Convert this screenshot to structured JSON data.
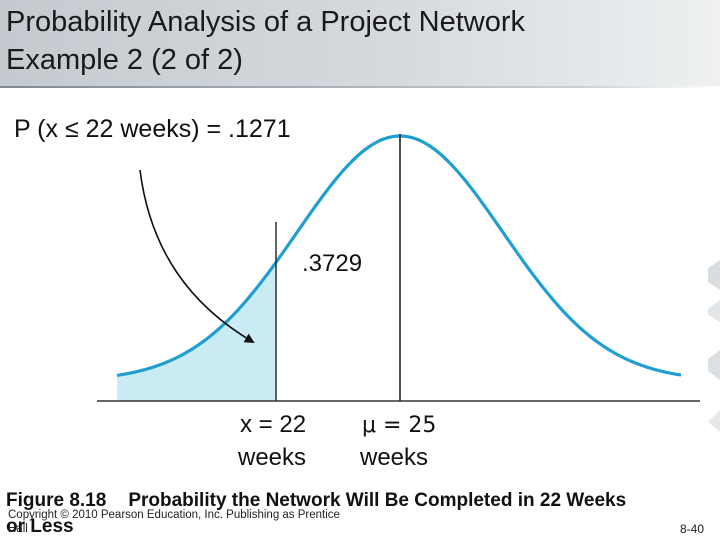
{
  "title": {
    "line1": "Probability Analysis of a Project Network",
    "line2": "Example 2 (2 of 2)"
  },
  "figure": {
    "prob_label": "P (x ≤ 22 weeks) = .1271",
    "area_label": ".3729",
    "x_label_line1": "x = 22",
    "x_label_line2": "weeks",
    "mu_label_line1": "μ = 25",
    "mu_label_line2": "weeks",
    "curve_color": "#1e9fd0",
    "shade_color": "#c9ebf3",
    "x_value": 22,
    "mu_value": 25
  },
  "caption": {
    "figure_number": "Figure 8.18",
    "text_line1": "Probability the Network Will Be Completed in 22 Weeks",
    "text_line2": "or Less"
  },
  "footer": {
    "copyright_line1": "Copyright © 2010 Pearson Education, Inc. Publishing as Prentice",
    "copyright_line2": "Hall",
    "slide_number": "8-40"
  }
}
